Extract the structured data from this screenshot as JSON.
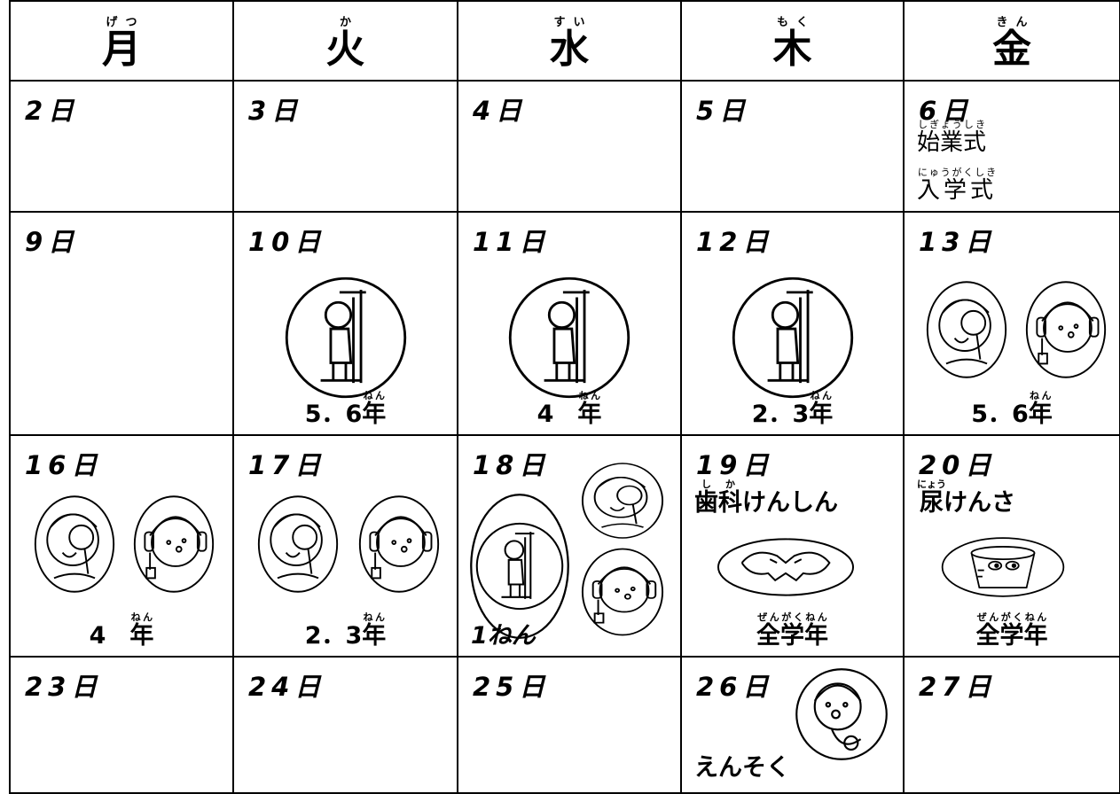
{
  "header": {
    "days": [
      {
        "ruby": "げつ",
        "label": "月"
      },
      {
        "ruby": "か",
        "label": "火"
      },
      {
        "ruby": "すい",
        "label": "水"
      },
      {
        "ruby": "もく",
        "label": "木"
      },
      {
        "ruby": "きん",
        "label": "金"
      }
    ]
  },
  "weeks": [
    [
      {
        "date": "2日"
      },
      {
        "date": "3日"
      },
      {
        "date": "4日"
      },
      {
        "date": "5日"
      },
      {
        "date": "6日",
        "events": [
          {
            "ruby": "しぎょうしき",
            "text": "始業式"
          },
          {
            "ruby": "にゅうがくしき",
            "text": "入学式"
          }
        ]
      }
    ],
    [
      {
        "date": "9日"
      },
      {
        "date": "10日",
        "grade": {
          "prefix": "5．6",
          "ruby": "ねん",
          "kanji": "年"
        }
      },
      {
        "date": "11日",
        "grade": {
          "prefix": "4　",
          "ruby": "ねん",
          "kanji": "年"
        }
      },
      {
        "date": "12日",
        "grade": {
          "prefix": "2．3",
          "ruby": "ねん",
          "kanji": "年"
        }
      },
      {
        "date": "13日",
        "grade": {
          "prefix": "5．6",
          "ruby": "ねん",
          "kanji": "年"
        }
      }
    ],
    [
      {
        "date": "16日",
        "grade": {
          "prefix": "4　",
          "ruby": "ねん",
          "kanji": "年"
        }
      },
      {
        "date": "17日",
        "grade": {
          "prefix": "2．3",
          "ruby": "ねん",
          "kanji": "年"
        }
      },
      {
        "date": "18日",
        "grade": {
          "text": "1ねん"
        }
      },
      {
        "date": "19日",
        "event": {
          "ruby": "しか",
          "kanji": "歯科",
          "rest": "けんしん"
        },
        "grade": {
          "ruby": "ぜんがくねん",
          "kanji": "全学年"
        }
      },
      {
        "date": "20日",
        "event": {
          "ruby": "にょう",
          "kanji": "尿",
          "rest": "けんさ"
        },
        "grade": {
          "ruby": "ぜんがくねん",
          "kanji": "全学年"
        }
      }
    ],
    [
      {
        "date": "23日"
      },
      {
        "date": "24日"
      },
      {
        "date": "25日"
      },
      {
        "date": "26日",
        "event": {
          "text": "えんそく"
        }
      },
      {
        "date": "27日"
      }
    ]
  ]
}
